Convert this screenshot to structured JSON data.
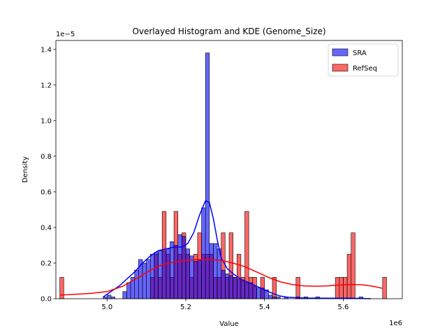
{
  "chart_data": {
    "type": "histogram",
    "title": "Overlayed Histogram and KDE (Genome_Size)",
    "xlabel": "Value",
    "ylabel": "Density",
    "x_offset_label": "1e6",
    "y_offset_label": "1e−5",
    "xlim": [
      4870000,
      5750000
    ],
    "ylim": [
      0,
      1.45
    ],
    "x_ticks": [
      5.0,
      5.2,
      5.4,
      5.6
    ],
    "y_ticks": [
      0.0,
      0.2,
      0.4,
      0.6,
      0.8,
      1.0,
      1.2,
      1.4
    ],
    "bin_width": 10000,
    "legend_position": "upper right",
    "series": [
      {
        "name": "SRA",
        "color": "#0000ff",
        "bins": [
          {
            "x": 4990000,
            "y": 0.01
          },
          {
            "x": 5000000,
            "y": 0.02
          },
          {
            "x": 5010000,
            "y": 0.01
          },
          {
            "x": 5040000,
            "y": 0.04
          },
          {
            "x": 5050000,
            "y": 0.09
          },
          {
            "x": 5060000,
            "y": 0.12
          },
          {
            "x": 5070000,
            "y": 0.16
          },
          {
            "x": 5080000,
            "y": 0.22
          },
          {
            "x": 5090000,
            "y": 0.2
          },
          {
            "x": 5100000,
            "y": 0.22
          },
          {
            "x": 5110000,
            "y": 0.25
          },
          {
            "x": 5120000,
            "y": 0.26
          },
          {
            "x": 5130000,
            "y": 0.27
          },
          {
            "x": 5140000,
            "y": 0.27
          },
          {
            "x": 5150000,
            "y": 0.28
          },
          {
            "x": 5160000,
            "y": 0.32
          },
          {
            "x": 5170000,
            "y": 0.3
          },
          {
            "x": 5180000,
            "y": 0.36
          },
          {
            "x": 5190000,
            "y": 0.35
          },
          {
            "x": 5200000,
            "y": 0.28
          },
          {
            "x": 5210000,
            "y": 0.24
          },
          {
            "x": 5220000,
            "y": 0.21
          },
          {
            "x": 5230000,
            "y": 0.22
          },
          {
            "x": 5240000,
            "y": 0.51
          },
          {
            "x": 5250000,
            "y": 1.38
          },
          {
            "x": 5260000,
            "y": 0.31
          },
          {
            "x": 5270000,
            "y": 0.31
          },
          {
            "x": 5280000,
            "y": 0.28
          },
          {
            "x": 5290000,
            "y": 0.16
          },
          {
            "x": 5300000,
            "y": 0.14
          },
          {
            "x": 5310000,
            "y": 0.13
          },
          {
            "x": 5320000,
            "y": 0.12
          },
          {
            "x": 5330000,
            "y": 0.11
          },
          {
            "x": 5340000,
            "y": 0.1
          },
          {
            "x": 5350000,
            "y": 0.09
          },
          {
            "x": 5360000,
            "y": 0.09
          },
          {
            "x": 5370000,
            "y": 0.07
          },
          {
            "x": 5380000,
            "y": 0.06
          },
          {
            "x": 5390000,
            "y": 0.06
          },
          {
            "x": 5400000,
            "y": 0.05
          },
          {
            "x": 5410000,
            "y": 0.02
          },
          {
            "x": 5420000,
            "y": 0.01
          },
          {
            "x": 5430000,
            "y": 0.01
          },
          {
            "x": 5450000,
            "y": 0.01
          },
          {
            "x": 5480000,
            "y": 0.01
          },
          {
            "x": 5500000,
            "y": 0.01
          },
          {
            "x": 5530000,
            "y": 0.01
          },
          {
            "x": 5640000,
            "y": 0.01
          }
        ],
        "kde": [
          {
            "x": 4990000,
            "y": 0.01
          },
          {
            "x": 5010000,
            "y": 0.04
          },
          {
            "x": 5030000,
            "y": 0.07
          },
          {
            "x": 5050000,
            "y": 0.11
          },
          {
            "x": 5070000,
            "y": 0.15
          },
          {
            "x": 5090000,
            "y": 0.2
          },
          {
            "x": 5110000,
            "y": 0.24
          },
          {
            "x": 5130000,
            "y": 0.27
          },
          {
            "x": 5150000,
            "y": 0.28
          },
          {
            "x": 5170000,
            "y": 0.29
          },
          {
            "x": 5190000,
            "y": 0.29
          },
          {
            "x": 5205000,
            "y": 0.31
          },
          {
            "x": 5220000,
            "y": 0.37
          },
          {
            "x": 5235000,
            "y": 0.47
          },
          {
            "x": 5250000,
            "y": 0.55
          },
          {
            "x": 5260000,
            "y": 0.54
          },
          {
            "x": 5270000,
            "y": 0.45
          },
          {
            "x": 5280000,
            "y": 0.33
          },
          {
            "x": 5290000,
            "y": 0.23
          },
          {
            "x": 5305000,
            "y": 0.17
          },
          {
            "x": 5320000,
            "y": 0.14
          },
          {
            "x": 5340000,
            "y": 0.11
          },
          {
            "x": 5360000,
            "y": 0.09
          },
          {
            "x": 5380000,
            "y": 0.07
          },
          {
            "x": 5400000,
            "y": 0.05
          },
          {
            "x": 5420000,
            "y": 0.03
          },
          {
            "x": 5440000,
            "y": 0.015
          },
          {
            "x": 5460000,
            "y": 0.008
          },
          {
            "x": 5500000,
            "y": 0.004
          },
          {
            "x": 5560000,
            "y": 0.003
          },
          {
            "x": 5620000,
            "y": 0.003
          },
          {
            "x": 5670000,
            "y": 0.0
          }
        ]
      },
      {
        "name": "RefSeq",
        "color": "#ff0000",
        "bins": [
          {
            "x": 4880000,
            "y": 0.12
          },
          {
            "x": 5110000,
            "y": 0.12
          },
          {
            "x": 5120000,
            "y": 0.25
          },
          {
            "x": 5130000,
            "y": 0.12
          },
          {
            "x": 5140000,
            "y": 0.49
          },
          {
            "x": 5150000,
            "y": 0.25
          },
          {
            "x": 5160000,
            "y": 0.12
          },
          {
            "x": 5170000,
            "y": 0.49
          },
          {
            "x": 5180000,
            "y": 0.25
          },
          {
            "x": 5190000,
            "y": 0.37
          },
          {
            "x": 5200000,
            "y": 0.25
          },
          {
            "x": 5210000,
            "y": 0.12
          },
          {
            "x": 5220000,
            "y": 0.25
          },
          {
            "x": 5230000,
            "y": 0.37
          },
          {
            "x": 5240000,
            "y": 0.25
          },
          {
            "x": 5250000,
            "y": 0.25
          },
          {
            "x": 5260000,
            "y": 0.25
          },
          {
            "x": 5270000,
            "y": 0.12
          },
          {
            "x": 5280000,
            "y": 0.12
          },
          {
            "x": 5290000,
            "y": 0.37
          },
          {
            "x": 5300000,
            "y": 0.12
          },
          {
            "x": 5310000,
            "y": 0.37
          },
          {
            "x": 5320000,
            "y": 0.12
          },
          {
            "x": 5330000,
            "y": 0.25
          },
          {
            "x": 5340000,
            "y": 0.12
          },
          {
            "x": 5350000,
            "y": 0.49
          },
          {
            "x": 5360000,
            "y": 0.12
          },
          {
            "x": 5370000,
            "y": 0.12
          },
          {
            "x": 5390000,
            "y": 0.12
          },
          {
            "x": 5420000,
            "y": 0.12
          },
          {
            "x": 5480000,
            "y": 0.12
          },
          {
            "x": 5580000,
            "y": 0.12
          },
          {
            "x": 5590000,
            "y": 0.12
          },
          {
            "x": 5600000,
            "y": 0.12
          },
          {
            "x": 5610000,
            "y": 0.25
          },
          {
            "x": 5620000,
            "y": 0.37
          },
          {
            "x": 5700000,
            "y": 0.12
          }
        ],
        "kde": [
          {
            "x": 4880000,
            "y": 0.02
          },
          {
            "x": 4920000,
            "y": 0.025
          },
          {
            "x": 4960000,
            "y": 0.03
          },
          {
            "x": 5000000,
            "y": 0.04
          },
          {
            "x": 5040000,
            "y": 0.07
          },
          {
            "x": 5080000,
            "y": 0.12
          },
          {
            "x": 5110000,
            "y": 0.16
          },
          {
            "x": 5140000,
            "y": 0.19
          },
          {
            "x": 5170000,
            "y": 0.205
          },
          {
            "x": 5200000,
            "y": 0.215
          },
          {
            "x": 5230000,
            "y": 0.22
          },
          {
            "x": 5260000,
            "y": 0.22
          },
          {
            "x": 5290000,
            "y": 0.215
          },
          {
            "x": 5320000,
            "y": 0.2
          },
          {
            "x": 5350000,
            "y": 0.18
          },
          {
            "x": 5380000,
            "y": 0.15
          },
          {
            "x": 5410000,
            "y": 0.12
          },
          {
            "x": 5440000,
            "y": 0.095
          },
          {
            "x": 5470000,
            "y": 0.08
          },
          {
            "x": 5500000,
            "y": 0.072
          },
          {
            "x": 5530000,
            "y": 0.07
          },
          {
            "x": 5560000,
            "y": 0.072
          },
          {
            "x": 5590000,
            "y": 0.077
          },
          {
            "x": 5620000,
            "y": 0.08
          },
          {
            "x": 5650000,
            "y": 0.078
          },
          {
            "x": 5680000,
            "y": 0.068
          },
          {
            "x": 5700000,
            "y": 0.058
          }
        ]
      }
    ]
  }
}
